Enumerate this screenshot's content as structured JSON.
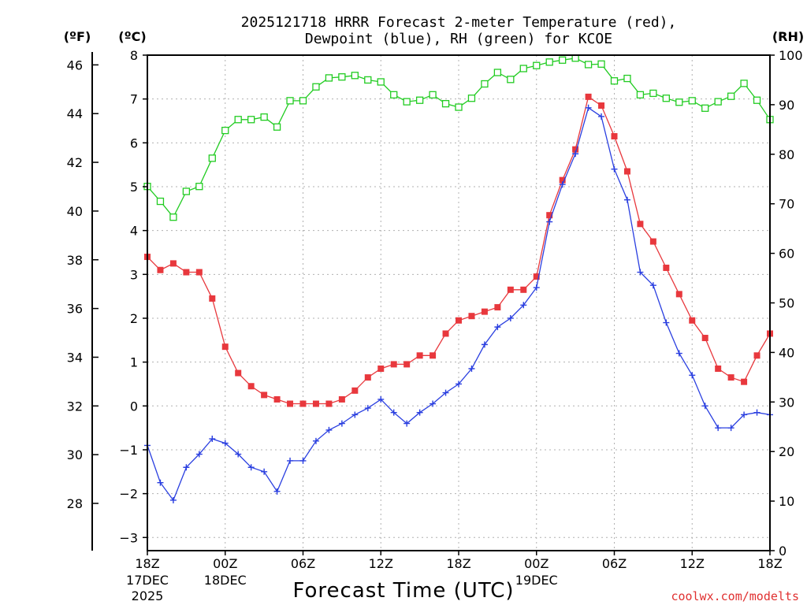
{
  "chart_data": {
    "type": "line",
    "title_line1": "2025121718 HRRR Forecast 2-meter Temperature (red),",
    "title_line2": "Dewpoint (blue), RH (green) for KCOE",
    "xlabel": "Forecast Time (UTC)",
    "credit": "coolwx.com/modelts",
    "units": {
      "fahrenheit": "(ºF)",
      "celsius": "(ºC)",
      "rh": "(RH)"
    },
    "x_range_hours": [
      0,
      48
    ],
    "celsius_axis": {
      "ylim": [
        -3.3,
        8
      ],
      "ticks": [
        "-3",
        "-2",
        "-1",
        "0",
        "1",
        "2",
        "3",
        "4",
        "5",
        "6",
        "7",
        "8"
      ]
    },
    "fahrenheit_axis": {
      "ticks": [
        "28",
        "30",
        "32",
        "34",
        "36",
        "38",
        "40",
        "42",
        "44",
        "46"
      ]
    },
    "rh_axis": {
      "ylim": [
        0,
        100
      ],
      "ticks": [
        "0",
        "10",
        "20",
        "30",
        "40",
        "50",
        "60",
        "70",
        "80",
        "90",
        "100"
      ]
    },
    "x_ticks": [
      {
        "hour": 0,
        "line1": "18Z",
        "line2": "17DEC",
        "line3": "2025"
      },
      {
        "hour": 6,
        "line1": "00Z",
        "line2": "18DEC",
        "line3": ""
      },
      {
        "hour": 12,
        "line1": "06Z",
        "line2": "",
        "line3": ""
      },
      {
        "hour": 18,
        "line1": "12Z",
        "line2": "",
        "line3": ""
      },
      {
        "hour": 24,
        "line1": "18Z",
        "line2": "",
        "line3": ""
      },
      {
        "hour": 30,
        "line1": "00Z",
        "line2": "19DEC",
        "line3": ""
      },
      {
        "hour": 36,
        "line1": "06Z",
        "line2": "",
        "line3": ""
      },
      {
        "hour": 42,
        "line1": "12Z",
        "line2": "",
        "line3": ""
      },
      {
        "hour": 48,
        "line1": "18Z",
        "line2": "",
        "line3": ""
      }
    ],
    "series": [
      {
        "name": "Temperature",
        "axis": "celsius",
        "color": "#e8383d",
        "marker": "filled-square",
        "values": [
          3.4,
          3.1,
          3.25,
          3.05,
          3.05,
          2.45,
          1.35,
          0.75,
          0.45,
          0.25,
          0.15,
          0.05,
          0.05,
          0.05,
          0.05,
          0.15,
          0.35,
          0.65,
          0.85,
          0.95,
          0.95,
          1.15,
          1.15,
          1.65,
          1.95,
          2.05,
          2.15,
          2.25,
          2.65,
          2.65,
          2.95,
          4.35,
          5.15,
          5.85,
          7.05,
          6.85,
          6.15,
          5.35,
          4.15,
          3.75,
          3.15,
          2.55,
          1.95,
          1.55,
          0.85,
          0.65,
          0.55,
          1.15,
          1.65
        ]
      },
      {
        "name": "Dewpoint",
        "axis": "celsius",
        "color": "#2a3fe0",
        "marker": "plus",
        "values": [
          -0.9,
          -1.75,
          -2.15,
          -1.4,
          -1.1,
          -0.75,
          -0.85,
          -1.1,
          -1.4,
          -1.5,
          -1.95,
          -1.25,
          -1.25,
          -0.8,
          -0.55,
          -0.4,
          -0.2,
          -0.05,
          0.15,
          -0.15,
          -0.4,
          -0.15,
          0.05,
          0.3,
          0.5,
          0.85,
          1.4,
          1.8,
          2.0,
          2.3,
          2.7,
          4.2,
          5.05,
          5.75,
          6.8,
          6.6,
          5.4,
          4.7,
          3.05,
          2.75,
          1.9,
          1.2,
          0.7,
          0.0,
          -0.5,
          -0.5,
          -0.2,
          -0.15,
          -0.2
        ]
      },
      {
        "name": "RH",
        "axis": "rh",
        "color": "#22cc22",
        "marker": "open-square",
        "values": [
          73.5,
          70.5,
          67.3,
          72.5,
          73.5,
          79.2,
          84.8,
          87.0,
          87.0,
          87.5,
          85.5,
          90.8,
          90.8,
          93.6,
          95.4,
          95.6,
          95.9,
          95.0,
          94.6,
          92.0,
          90.6,
          90.9,
          92.0,
          90.2,
          89.5,
          91.3,
          94.2,
          96.5,
          95.1,
          97.3,
          97.9,
          98.6,
          99.0,
          99.4,
          98.1,
          98.2,
          94.8,
          95.3,
          92.0,
          92.3,
          91.3,
          90.5,
          90.8,
          89.3,
          90.6,
          91.7,
          94.3,
          90.9,
          87.0
        ]
      }
    ]
  }
}
